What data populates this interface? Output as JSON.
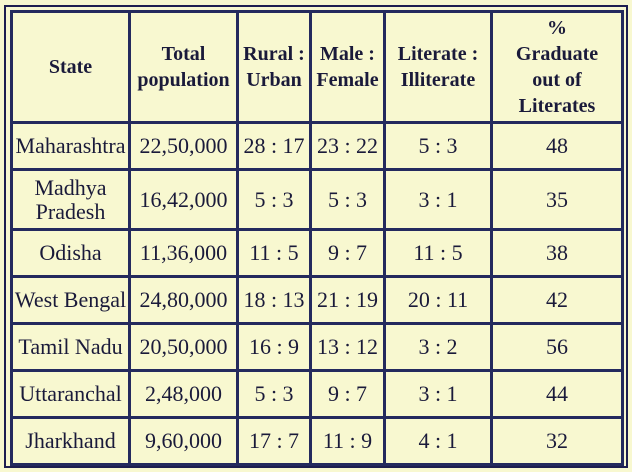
{
  "table": {
    "headers": [
      {
        "lines": [
          "State"
        ]
      },
      {
        "lines": [
          "Total",
          "population"
        ]
      },
      {
        "lines": [
          "Rural :",
          "Urban"
        ]
      },
      {
        "lines": [
          "Male :",
          "Female"
        ]
      },
      {
        "lines": [
          "Literate :",
          "Illiterate"
        ]
      },
      {
        "lines": [
          "%",
          "Graduate",
          "out of",
          "Literates"
        ]
      }
    ],
    "rows": [
      {
        "state": [
          "Maharashtra"
        ],
        "population": "22,50,000",
        "rural_urban": "28 : 17",
        "male_female": "23 : 22",
        "literate_illiterate": "5 : 3",
        "graduate_pct": "48"
      },
      {
        "state": [
          "Madhya",
          "Pradesh"
        ],
        "population": "16,42,000",
        "rural_urban": "5 : 3",
        "male_female": "5 : 3",
        "literate_illiterate": "3 : 1",
        "graduate_pct": "35"
      },
      {
        "state": [
          "Odisha"
        ],
        "population": "11,36,000",
        "rural_urban": "11 : 5",
        "male_female": "9 : 7",
        "literate_illiterate": "11 : 5",
        "graduate_pct": "38"
      },
      {
        "state": [
          "West Bengal"
        ],
        "population": "24,80,000",
        "rural_urban": "18 : 13",
        "male_female": "21 : 19",
        "literate_illiterate": "20 : 11",
        "graduate_pct": "42"
      },
      {
        "state": [
          "Tamil Nadu"
        ],
        "population": "20,50,000",
        "rural_urban": "16 : 9",
        "male_female": "13 : 12",
        "literate_illiterate": "3 : 2",
        "graduate_pct": "56"
      },
      {
        "state": [
          "Uttaranchal"
        ],
        "population": "2,48,000",
        "rural_urban": "5 : 3",
        "male_female": "9 : 7",
        "literate_illiterate": "3 : 1",
        "graduate_pct": "44"
      },
      {
        "state": [
          "Jharkhand"
        ],
        "population": "9,60,000",
        "rural_urban": "17 : 7",
        "male_female": "11 : 9",
        "literate_illiterate": "4 : 1",
        "graduate_pct": "32"
      }
    ]
  }
}
